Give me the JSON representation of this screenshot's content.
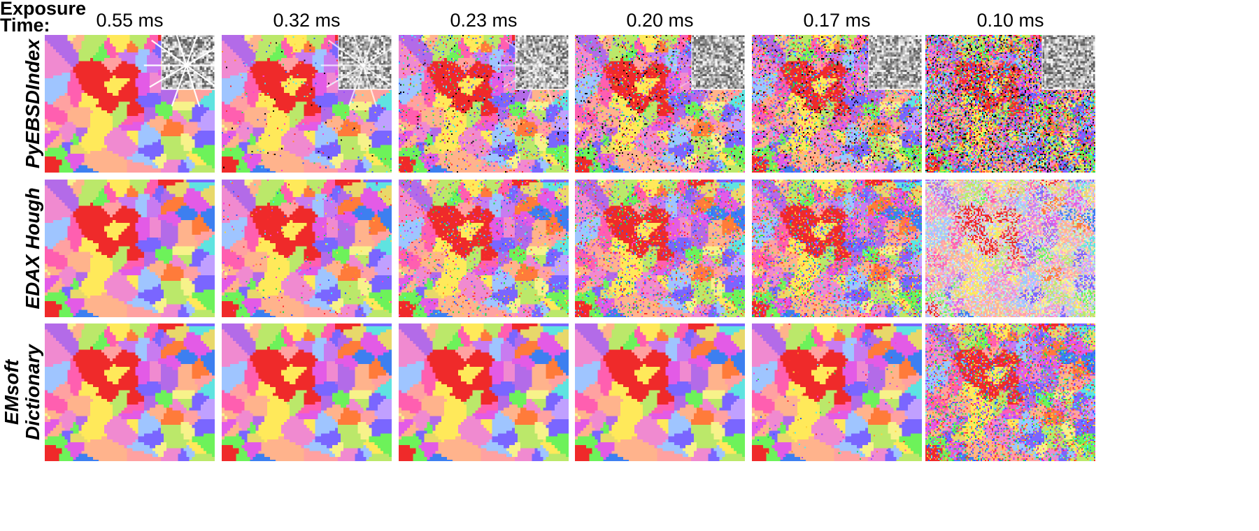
{
  "header": {
    "exposure_line1": "Exposure",
    "exposure_line2": "Time:"
  },
  "exposure_times": [
    "0.55 ms",
    "0.32 ms",
    "0.23 ms",
    "0.20 ms",
    "0.17 ms",
    "0.10 ms"
  ],
  "methods": [
    {
      "label_line1": "PyEBSDIndex",
      "label_line2": "",
      "noise": [
        0.0,
        0.02,
        0.12,
        0.22,
        0.38,
        0.96
      ],
      "black_fraction": 0.35,
      "pattern_inset": true
    },
    {
      "label_line1": "EDAX Hough",
      "label_line2": "",
      "noise": [
        0.0,
        0.02,
        0.1,
        0.2,
        0.33,
        0.98
      ],
      "black_fraction": 0.0,
      "pattern_inset": false
    },
    {
      "label_line1": "EMsoft",
      "label_line2": "Dictionary",
      "noise": [
        0.0,
        0.0,
        0.0,
        0.0,
        0.01,
        0.42
      ],
      "black_fraction": 0.0,
      "pattern_inset": false
    }
  ],
  "grain_colors": [
    "#e35be6",
    "#b36be8",
    "#f08ad0",
    "#ff7b3a",
    "#ef2a2a",
    "#ffe95a",
    "#f7f28a",
    "#6df25a",
    "#3d7ff0",
    "#9fc5ff",
    "#5fe3e0",
    "#bbe86a",
    "#ff5fb0",
    "#c0a0ff",
    "#ffa1a1",
    "#7a66ff",
    "#e8d86a",
    "#ffb38c"
  ],
  "noise_colors": [
    "#ff2a2a",
    "#2a5bff",
    "#2bd64a",
    "#ffd43a",
    "#ff3fd0",
    "#3ff0ff",
    "#ff8a2a",
    "#9a4aff",
    "#000000"
  ],
  "pattern_colors": [
    "#f2f2f2",
    "#d8d8d8",
    "#bcbcbc",
    "#9a9a9a",
    "#7a7a7a",
    "#5c5c5c"
  ],
  "pattern_contrast": [
    0.95,
    0.7,
    0.45,
    0.3,
    0.18,
    0.05
  ]
}
